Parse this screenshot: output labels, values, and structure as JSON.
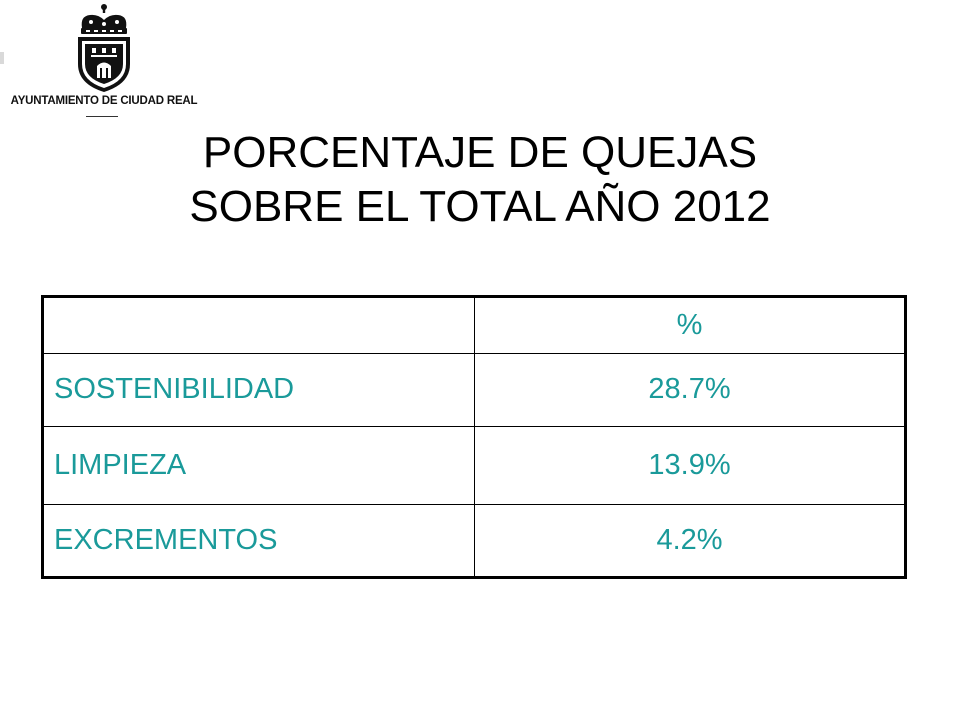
{
  "logo": {
    "text": "AYUNTAMIENTO DE CIUDAD REAL"
  },
  "title": {
    "line1": "PORCENTAJE DE QUEJAS",
    "line2": "SOBRE EL TOTAL AÑO 2012"
  },
  "table": {
    "header": [
      "",
      "%"
    ],
    "rows": [
      {
        "label": "SOSTENIBILIDAD",
        "value": "28.7%"
      },
      {
        "label": "LIMPIEZA",
        "value": "13.9%"
      },
      {
        "label": "EXCREMENTOS",
        "value": "4.2%"
      }
    ]
  },
  "colors": {
    "table_text": "#1a9a9a",
    "title_text": "#000000",
    "background": "#ffffff"
  }
}
